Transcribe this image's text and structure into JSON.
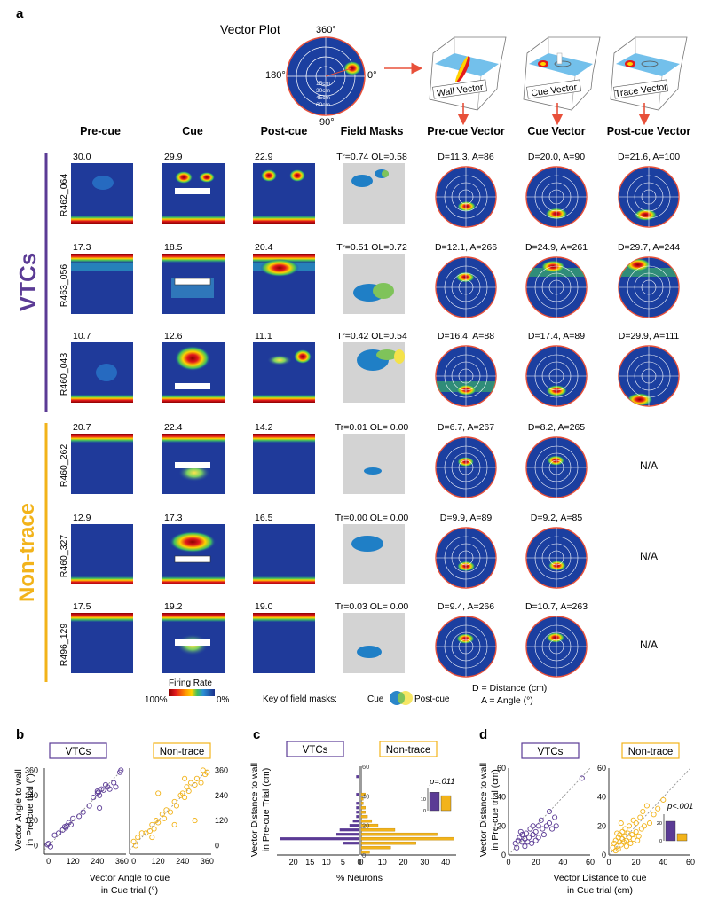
{
  "panel_a": {
    "label": "a",
    "vector_plot": {
      "title": "Vector Plot",
      "angle_labels": [
        "360°",
        "180°",
        "0°",
        "90°"
      ],
      "ring_labels": [
        "15cm",
        "30cm",
        "45cm",
        "60cm"
      ]
    },
    "model_labels": [
      "Wall Vector",
      "Cue Vector",
      "Trace Vector"
    ],
    "column_headers": [
      "Pre-cue",
      "Cue",
      "Post-cue",
      "Field Masks",
      "Pre-cue Vector",
      "Cue Vector",
      "Post-cue Vector"
    ],
    "groups": [
      {
        "name": "VTCs",
        "color": "#5b3b95"
      },
      {
        "name": "Non-trace",
        "color": "#f2b31a"
      }
    ],
    "rows": [
      {
        "cell_id": "R462_064",
        "group": 0,
        "peak_rates": [
          "30.0",
          "29.9",
          "22.9"
        ],
        "mask_stats": "Tr=0.74 OL=0.58",
        "vectors": [
          "D=11.3, A=86",
          "D=20.0, A=90",
          "D=21.6, A=100"
        ]
      },
      {
        "cell_id": "R463_056",
        "group": 0,
        "peak_rates": [
          "17.3",
          "18.5",
          "20.4"
        ],
        "mask_stats": "Tr=0.51 OL=0.72",
        "vectors": [
          "D=12.1, A=266",
          "D=24.9, A=261",
          "D=29.7, A=244"
        ]
      },
      {
        "cell_id": "R460_043",
        "group": 0,
        "peak_rates": [
          "10.7",
          "12.6",
          "11.1"
        ],
        "mask_stats": "Tr=0.42 OL=0.54",
        "vectors": [
          "D=16.4, A=88",
          "D=17.4, A=89",
          "D=29.9, A=111"
        ]
      },
      {
        "cell_id": "R460_262",
        "group": 1,
        "peak_rates": [
          "20.7",
          "22.4",
          "14.2"
        ],
        "mask_stats": "Tr=0.01 OL= 0.00",
        "vectors": [
          "D=6.7, A=267",
          "D=8.2, A=265",
          "N/A"
        ]
      },
      {
        "cell_id": "R460_327",
        "group": 1,
        "peak_rates": [
          "12.9",
          "17.3",
          "16.5"
        ],
        "mask_stats": "Tr=0.00 OL= 0.00",
        "vectors": [
          "D=9.9, A=89",
          "D=9.2, A=85",
          "N/A"
        ]
      },
      {
        "cell_id": "R496_129",
        "group": 1,
        "peak_rates": [
          "17.5",
          "19.2",
          "19.0"
        ],
        "mask_stats": "Tr=0.03 OL= 0.00",
        "vectors": [
          "D=9.4, A=266",
          "D=10.7, A=263",
          "N/A"
        ]
      }
    ],
    "colorbar": {
      "title": "Firing Rate",
      "max_label": "100%",
      "min_label": "0%"
    },
    "mask_key": {
      "label": "Key of  field masks:",
      "cue": "Cue",
      "post": "Post-cue"
    },
    "legend_lines": [
      "D = Distance (cm)",
      "A = Angle (°)"
    ]
  },
  "chart_data": [
    {
      "panel": "b",
      "type": "scatter",
      "title_left": "VTCs",
      "title_right": "Non-trace",
      "ylabel": [
        "Vector Angle to wall",
        "in Pre-cue trial  (°)"
      ],
      "xlabel": [
        "Vector Angle to cue",
        "in Cue trial  (°)"
      ],
      "xlim": [
        -20,
        380
      ],
      "ylim": [
        -40,
        370
      ],
      "ticks_left": [
        "0",
        "120",
        "240",
        "360"
      ],
      "ticks_right": [
        "0",
        "120",
        "240",
        "360"
      ],
      "series": [
        {
          "name": "VTCs",
          "color": "#5b3b95",
          "points": [
            [
              -5,
              5
            ],
            [
              0,
              10
            ],
            [
              10,
              -5
            ],
            [
              30,
              50
            ],
            [
              50,
              60
            ],
            [
              70,
              75
            ],
            [
              80,
              90
            ],
            [
              85,
              85
            ],
            [
              90,
              95
            ],
            [
              100,
              110
            ],
            [
              110,
              100
            ],
            [
              120,
              130
            ],
            [
              150,
              140
            ],
            [
              170,
              160
            ],
            [
              200,
              190
            ],
            [
              220,
              230
            ],
            [
              240,
              250
            ],
            [
              245,
              255
            ],
            [
              250,
              240
            ],
            [
              260,
              270
            ],
            [
              270,
              265
            ],
            [
              280,
              290
            ],
            [
              290,
              280
            ],
            [
              300,
              270
            ],
            [
              320,
              300
            ],
            [
              330,
              280
            ],
            [
              350,
              350
            ],
            [
              355,
              360
            ],
            [
              250,
              180
            ],
            [
              240,
              260
            ]
          ]
        },
        {
          "name": "Non-trace",
          "color": "#f2b31a",
          "points": [
            [
              0,
              20
            ],
            [
              10,
              0
            ],
            [
              20,
              40
            ],
            [
              40,
              60
            ],
            [
              60,
              60
            ],
            [
              80,
              70
            ],
            [
              90,
              100
            ],
            [
              100,
              80
            ],
            [
              110,
              120
            ],
            [
              120,
              110
            ],
            [
              140,
              150
            ],
            [
              150,
              130
            ],
            [
              160,
              170
            ],
            [
              180,
              160
            ],
            [
              200,
              210
            ],
            [
              210,
              190
            ],
            [
              230,
              240
            ],
            [
              240,
              250
            ],
            [
              250,
              230
            ],
            [
              260,
              280
            ],
            [
              270,
              260
            ],
            [
              280,
              300
            ],
            [
              300,
              290
            ],
            [
              310,
              320
            ],
            [
              330,
              300
            ],
            [
              340,
              360
            ],
            [
              350,
              340
            ],
            [
              360,
              350
            ],
            [
              120,
              250
            ],
            [
              300,
              120
            ],
            [
              200,
              100
            ],
            [
              90,
              40
            ],
            [
              250,
              320
            ]
          ]
        }
      ]
    },
    {
      "panel": "c",
      "type": "bar",
      "title_left": "VTCs",
      "title_right": "Non-trace",
      "ylabel": [
        "Vector Distance to wall",
        "in Pre-cue Trial  (cm)"
      ],
      "xlabel": "% Neurons",
      "ylim": [
        0,
        60
      ],
      "yticks": [
        "0",
        "20",
        "40",
        "60"
      ],
      "xticks_left": [
        "20",
        "15",
        "10",
        "5",
        "0"
      ],
      "xticks_right": [
        "0",
        "10",
        "20",
        "30",
        "40"
      ],
      "bin_centers": [
        2,
        5,
        8,
        11,
        14,
        17,
        20,
        23,
        26,
        29,
        32,
        35,
        38,
        41,
        44,
        47,
        50,
        53
      ],
      "series": [
        {
          "name": "VTCs",
          "color": "#5b3b95",
          "values": [
            0,
            0,
            5,
            24,
            7,
            6,
            3,
            2,
            1,
            1,
            1,
            1,
            0,
            1,
            0,
            0,
            0,
            1
          ]
        },
        {
          "name": "Non-trace",
          "color": "#f2b31a",
          "values": [
            4,
            14,
            26,
            44,
            36,
            16,
            8,
            5,
            3,
            2,
            2,
            1,
            1,
            2,
            0,
            0,
            0,
            0
          ]
        }
      ],
      "inset": {
        "p_label": "p=.011",
        "values": [
          16,
          13
        ],
        "ymax": 20,
        "ticks": [
          "0",
          "10"
        ]
      }
    },
    {
      "panel": "d",
      "type": "scatter",
      "title_left": "VTCs",
      "title_right": "Non-trace",
      "ylabel": [
        "Vector Distance to wall",
        "in Pre-cue trial  (cm)"
      ],
      "xlabel": [
        "Vector Distance to cue",
        "in Cue trial  (cm)"
      ],
      "xlim": [
        0,
        60
      ],
      "ylim": [
        0,
        60
      ],
      "ticks_left_x": [
        "0",
        "20",
        "40",
        "60"
      ],
      "ticks_left_y": [
        "0",
        "20",
        "40",
        "60"
      ],
      "ticks_right_x": [
        "0",
        "20",
        "40",
        "60"
      ],
      "ticks_right_y": [
        "0",
        "20",
        "40",
        "60"
      ],
      "series": [
        {
          "name": "VTCs",
          "color": "#5b3b95",
          "points": [
            [
              5,
              8
            ],
            [
              7,
              10
            ],
            [
              8,
              12
            ],
            [
              10,
              9
            ],
            [
              10,
              14
            ],
            [
              12,
              11
            ],
            [
              13,
              15
            ],
            [
              14,
              9
            ],
            [
              15,
              12
            ],
            [
              16,
              18
            ],
            [
              18,
              14
            ],
            [
              18,
              20
            ],
            [
              20,
              10
            ],
            [
              20,
              16
            ],
            [
              22,
              12
            ],
            [
              22,
              20
            ],
            [
              24,
              24
            ],
            [
              25,
              18
            ],
            [
              26,
              14
            ],
            [
              28,
              20
            ],
            [
              30,
              22
            ],
            [
              30,
              30
            ],
            [
              32,
              18
            ],
            [
              34,
              26
            ],
            [
              35,
              20
            ],
            [
              12,
              6
            ],
            [
              9,
              16
            ],
            [
              17,
              8
            ],
            [
              54,
              53
            ],
            [
              6,
              5
            ]
          ]
        },
        {
          "name": "Non-trace",
          "color": "#f2b31a",
          "points": [
            [
              3,
              5
            ],
            [
              4,
              8
            ],
            [
              5,
              10
            ],
            [
              6,
              6
            ],
            [
              7,
              12
            ],
            [
              8,
              9
            ],
            [
              8,
              14
            ],
            [
              9,
              7
            ],
            [
              10,
              11
            ],
            [
              10,
              16
            ],
            [
              11,
              9
            ],
            [
              12,
              13
            ],
            [
              12,
              18
            ],
            [
              13,
              10
            ],
            [
              14,
              15
            ],
            [
              15,
              12
            ],
            [
              15,
              20
            ],
            [
              16,
              8
            ],
            [
              17,
              14
            ],
            [
              18,
              24
            ],
            [
              18,
              11
            ],
            [
              20,
              16
            ],
            [
              20,
              22
            ],
            [
              22,
              13
            ],
            [
              23,
              26
            ],
            [
              24,
              18
            ],
            [
              25,
              30
            ],
            [
              26,
              20
            ],
            [
              28,
              34
            ],
            [
              30,
              22
            ],
            [
              33,
              28
            ],
            [
              36,
              32
            ],
            [
              40,
              38
            ],
            [
              6,
              15
            ],
            [
              9,
              22
            ],
            [
              13,
              6
            ],
            [
              21,
              10
            ],
            [
              5,
              3
            ],
            [
              7,
              4
            ]
          ]
        }
      ],
      "inset": {
        "p_label": "p<.001",
        "values": [
          22,
          8
        ],
        "ymax": 30,
        "ticks": [
          "0",
          "20"
        ]
      }
    }
  ]
}
